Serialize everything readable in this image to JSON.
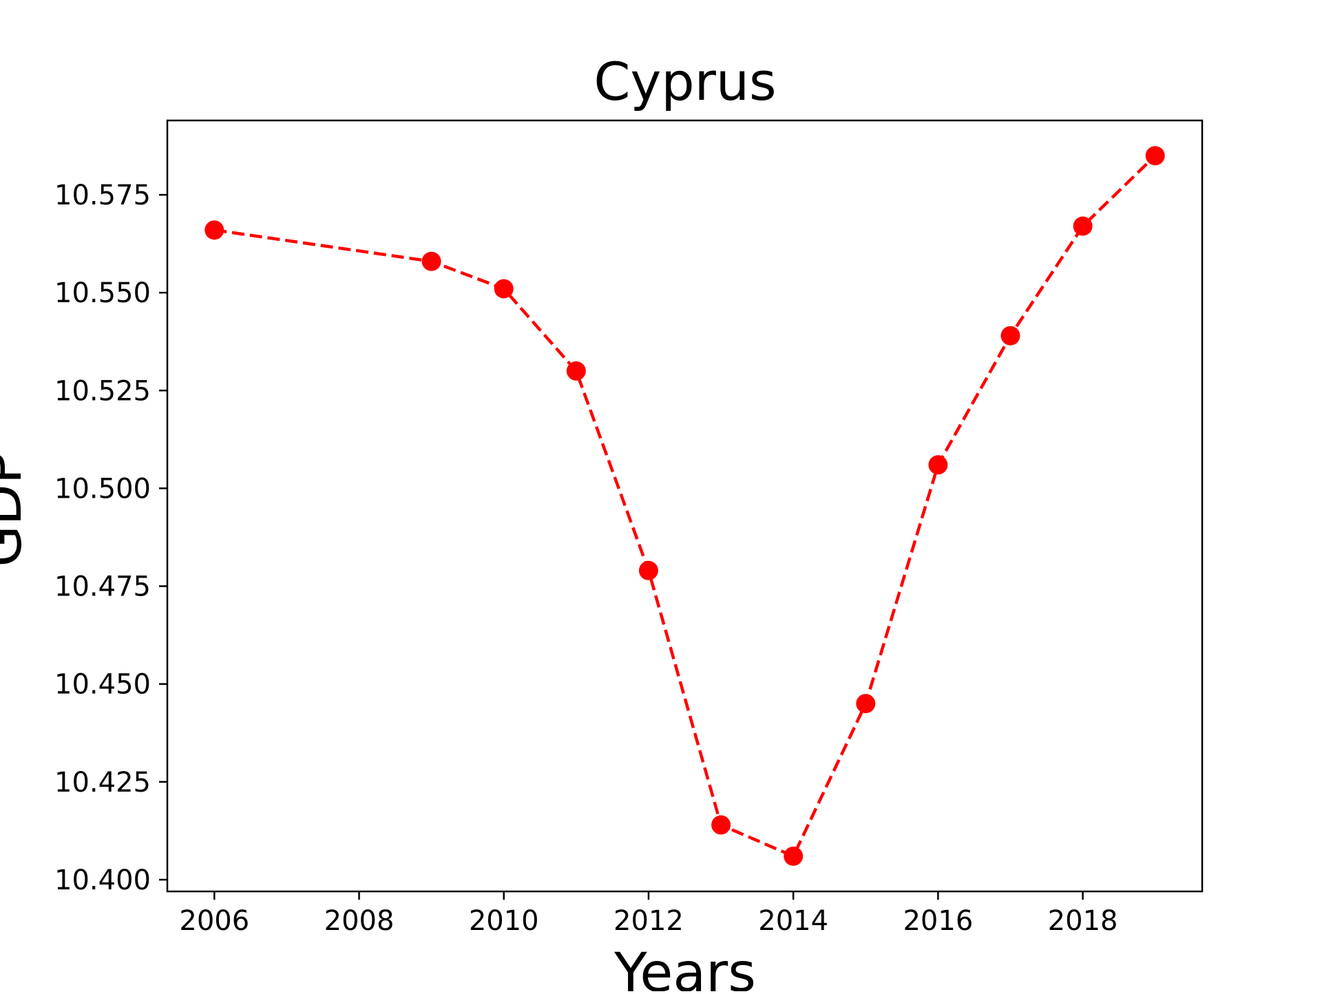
{
  "chart_data": {
    "type": "line",
    "title": "Cyprus",
    "xlabel": "Years",
    "ylabel": "GDP",
    "x": [
      2006,
      2009,
      2010,
      2011,
      2012,
      2013,
      2014,
      2015,
      2016,
      2017,
      2018,
      2019
    ],
    "series": [
      {
        "values": [
          10.566,
          10.558,
          10.551,
          10.53,
          10.479,
          10.414,
          10.406,
          10.445,
          10.506,
          10.539,
          10.567,
          10.585
        ],
        "color": "#ff0000",
        "line_style": "dashed",
        "marker": "circle"
      }
    ],
    "xlim": [
      2005.35,
      2019.65
    ],
    "ylim": [
      10.397,
      10.594
    ],
    "x_ticks": [
      2006,
      2008,
      2010,
      2012,
      2014,
      2016,
      2018
    ],
    "x_tick_labels": [
      "2006",
      "2008",
      "2010",
      "2012",
      "2014",
      "2016",
      "2018"
    ],
    "y_ticks": [
      10.4,
      10.425,
      10.45,
      10.475,
      10.5,
      10.525,
      10.55,
      10.575
    ],
    "y_tick_labels": [
      "10.400",
      "10.425",
      "10.450",
      "10.475",
      "10.500",
      "10.525",
      "10.550",
      "10.575"
    ],
    "grid": false,
    "legend": "none"
  }
}
